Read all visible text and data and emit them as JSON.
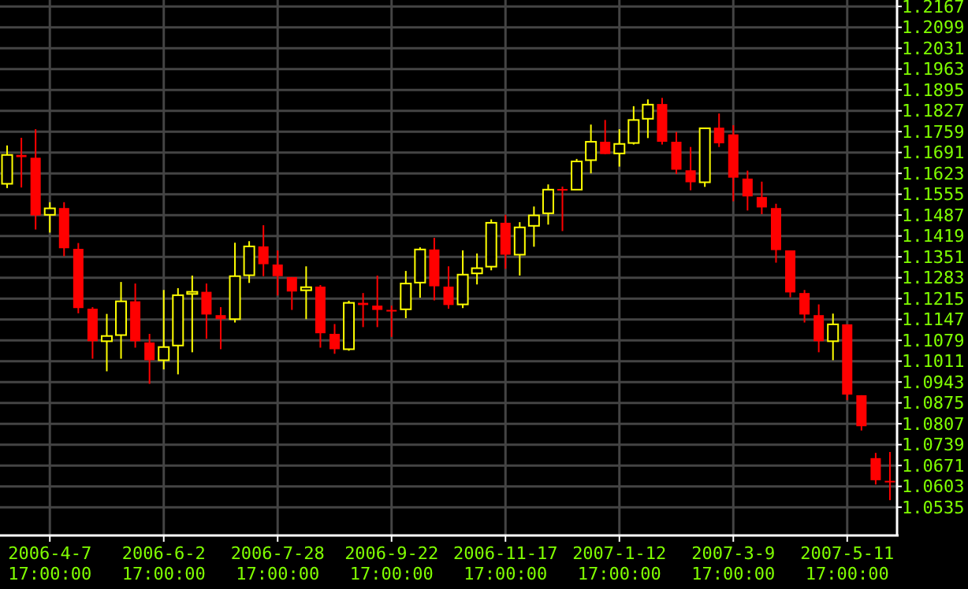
{
  "chart_data": {
    "type": "candlestick",
    "categories": [
      null,
      null,
      null,
      "2006-4-7 17:00:00",
      null,
      null,
      null,
      null,
      null,
      null,
      null,
      "2006-6-2 17:00:00",
      null,
      null,
      null,
      null,
      null,
      null,
      null,
      "2006-7-28 17:00:00",
      null,
      null,
      null,
      null,
      null,
      null,
      null,
      "2006-9-22 17:00:00",
      null,
      null,
      null,
      null,
      null,
      null,
      null,
      "2006-11-17 17:00:00",
      null,
      null,
      null,
      null,
      null,
      null,
      null,
      "2007-1-12 17:00:00",
      null,
      null,
      null,
      null,
      null,
      null,
      null,
      "2007-3-9 17:00:00",
      null,
      null,
      null,
      null,
      null,
      null,
      null,
      "2007-5-11 17:00:00",
      null,
      null,
      null
    ],
    "ohlc": [
      [
        1.1589,
        1.1714,
        1.1575,
        1.1683
      ],
      [
        1.1683,
        1.1739,
        1.1577,
        1.1676
      ],
      [
        1.1674,
        1.1767,
        1.144,
        1.1486
      ],
      [
        1.1488,
        1.1529,
        1.143,
        1.1509
      ],
      [
        1.151,
        1.1529,
        1.1353,
        1.1379
      ],
      [
        1.1377,
        1.1396,
        1.1167,
        1.1184
      ],
      [
        1.1182,
        1.1187,
        1.1019,
        1.1076
      ],
      [
        1.1076,
        1.1165,
        1.0978,
        1.1093
      ],
      [
        1.1096,
        1.1269,
        1.1019,
        1.1206
      ],
      [
        1.1206,
        1.1264,
        1.1055,
        1.1076
      ],
      [
        1.1072,
        1.11,
        1.0937,
        1.1014
      ],
      [
        1.1014,
        1.1243,
        1.0984,
        1.1057
      ],
      [
        1.1062,
        1.1249,
        1.0968,
        1.1226
      ],
      [
        1.123,
        1.129,
        1.104,
        1.1237
      ],
      [
        1.1237,
        1.1264,
        1.1084,
        1.1163
      ],
      [
        1.1161,
        1.1187,
        1.105,
        1.1148
      ],
      [
        1.1148,
        1.1397,
        1.1137,
        1.1288
      ],
      [
        1.1291,
        1.1402,
        1.1266,
        1.1385
      ],
      [
        1.1385,
        1.1454,
        1.1288,
        1.1327
      ],
      [
        1.1326,
        1.1372,
        1.1225,
        1.1288
      ],
      [
        1.1285,
        1.1285,
        1.1178,
        1.1238
      ],
      [
        1.1242,
        1.132,
        1.1148,
        1.1252
      ],
      [
        1.1254,
        1.1259,
        1.1055,
        1.1102
      ],
      [
        1.11,
        1.1132,
        1.1035,
        1.105
      ],
      [
        1.105,
        1.1208,
        1.1045,
        1.1201
      ],
      [
        1.1201,
        1.1233,
        1.1122,
        1.1194
      ],
      [
        1.1192,
        1.129,
        1.1122,
        1.1178
      ],
      [
        1.1178,
        1.1192,
        1.109,
        1.1175
      ],
      [
        1.118,
        1.1305,
        1.1151,
        1.1264
      ],
      [
        1.1267,
        1.1382,
        1.1218,
        1.1375
      ],
      [
        1.1375,
        1.1413,
        1.1209,
        1.1255
      ],
      [
        1.1254,
        1.132,
        1.1182,
        1.1194
      ],
      [
        1.1196,
        1.1372,
        1.1184,
        1.1293
      ],
      [
        1.1297,
        1.1362,
        1.1261,
        1.1314
      ],
      [
        1.1319,
        1.1473,
        1.1307,
        1.1462
      ],
      [
        1.1462,
        1.1488,
        1.1312,
        1.1358
      ],
      [
        1.1358,
        1.1464,
        1.129,
        1.1447
      ],
      [
        1.1452,
        1.1515,
        1.1384,
        1.1486
      ],
      [
        1.1493,
        1.1587,
        1.1456,
        1.157
      ],
      [
        1.1572,
        1.158,
        1.1435,
        1.1567
      ],
      [
        1.157,
        1.167,
        1.157,
        1.1662
      ],
      [
        1.1666,
        1.1782,
        1.1623,
        1.1726
      ],
      [
        1.1726,
        1.1797,
        1.1686,
        1.1686
      ],
      [
        1.1688,
        1.1767,
        1.1645,
        1.1719
      ],
      [
        1.1722,
        1.1842,
        1.1717,
        1.1797
      ],
      [
        1.1801,
        1.1864,
        1.1738,
        1.1847
      ],
      [
        1.1849,
        1.1869,
        1.1717,
        1.1726
      ],
      [
        1.1726,
        1.1758,
        1.1621,
        1.1635
      ],
      [
        1.1633,
        1.1709,
        1.1568,
        1.1594
      ],
      [
        1.1594,
        1.177,
        1.1579,
        1.177
      ],
      [
        1.1772,
        1.1818,
        1.1709,
        1.1721
      ],
      [
        1.175,
        1.178,
        1.1532,
        1.1609
      ],
      [
        1.1606,
        1.1632,
        1.1502,
        1.1548
      ],
      [
        1.1546,
        1.1596,
        1.149,
        1.1512
      ],
      [
        1.151,
        1.1524,
        1.1332,
        1.1373
      ],
      [
        1.1372,
        1.1372,
        1.1219,
        1.1235
      ],
      [
        1.1233,
        1.1243,
        1.1137,
        1.1163
      ],
      [
        1.1161,
        1.1196,
        1.104,
        1.1076
      ],
      [
        1.1076,
        1.1166,
        1.1014,
        1.1131
      ],
      [
        1.1131,
        1.1131,
        1.0884,
        1.0902
      ],
      [
        1.09,
        1.09,
        1.0785,
        1.0799
      ],
      [
        1.0695,
        1.0712,
        1.0609,
        1.0623
      ],
      [
        1.0621,
        1.0715,
        1.0558,
        1.0619
      ]
    ],
    "colors": [
      "#ffff00",
      "#ff0000",
      "#ff0000",
      "#ffff00",
      "#ff0000",
      "#ff0000",
      "#ff0000",
      "#ffff00",
      "#ffff00",
      "#ff0000",
      "#ff0000",
      "#ffff00",
      "#ffff00",
      "#ffff00",
      "#ff0000",
      "#ff0000",
      "#ffff00",
      "#ffff00",
      "#ff0000",
      "#ff0000",
      "#ff0000",
      "#ffff00",
      "#ff0000",
      "#ff0000",
      "#ffff00",
      "#ff0000",
      "#ff0000",
      "#ff0000",
      "#ffff00",
      "#ffff00",
      "#ff0000",
      "#ff0000",
      "#ffff00",
      "#ffff00",
      "#ffff00",
      "#ff0000",
      "#ffff00",
      "#ffff00",
      "#ffff00",
      "#ff0000",
      "#ffff00",
      "#ffff00",
      "#ff0000",
      "#ffff00",
      "#ffff00",
      "#ffff00",
      "#ff0000",
      "#ff0000",
      "#ff0000",
      "#ffff00",
      "#ff0000",
      "#ff0000",
      "#ff0000",
      "#ff0000",
      "#ff0000",
      "#ff0000",
      "#ff0000",
      "#ff0000",
      "#ffff00",
      "#ff0000",
      "#ff0000",
      "#ff0000",
      "#ff0000"
    ],
    "ylim": [
      1.0443,
      1.2188
    ],
    "yticks": [
      1.2167,
      1.2099,
      1.2031,
      1.1963,
      1.1895,
      1.1827,
      1.1759,
      1.1691,
      1.1623,
      1.1555,
      1.1487,
      1.1419,
      1.1351,
      1.1283,
      1.1215,
      1.1147,
      1.1079,
      1.1011,
      1.0943,
      1.0875,
      1.0807,
      1.0739,
      1.0671,
      1.0603,
      1.0535
    ],
    "grid": true
  }
}
